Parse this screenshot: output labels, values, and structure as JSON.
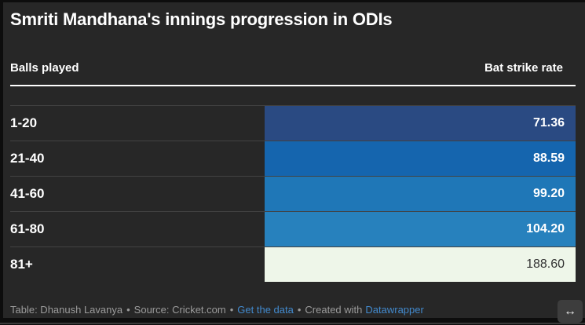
{
  "header": {
    "title": "Smriti Mandhana's innings progression in ODIs"
  },
  "table": {
    "column_left": "Balls played",
    "column_right": "Bat strike rate",
    "rows": [
      {
        "label": "1-20",
        "value": "71.36",
        "bar_color": "#2a4a82",
        "value_color": "#ffffff"
      },
      {
        "label": "21-40",
        "value": "88.59",
        "bar_color": "#1565ae",
        "value_color": "#ffffff"
      },
      {
        "label": "41-60",
        "value": "99.20",
        "bar_color": "#1f77b7",
        "value_color": "#ffffff"
      },
      {
        "label": "61-80",
        "value": "104.20",
        "bar_color": "#2781bd",
        "value_color": "#ffffff"
      },
      {
        "label": "81+",
        "value": "188.60",
        "bar_color": "#eef6e9",
        "value_color": "#333333"
      }
    ]
  },
  "footer": {
    "credit": "Table: Dhanush Lavanya",
    "separator": "•",
    "source": "Source: Cricket.com",
    "get_data_link": "Get the data",
    "created_with": "Created with",
    "datawrapper_link": "Datawrapper",
    "link_color": "#4289cc",
    "text_color": "#9b9b9b"
  },
  "icons": {
    "resize": "↔"
  },
  "colors": {
    "page_background": "#272727",
    "frame_background": "#0d0d0d",
    "header_rule": "#ffffff",
    "title_color": "#ffffff"
  },
  "chart_data": {
    "type": "bar",
    "categories": [
      "1-20",
      "21-40",
      "41-60",
      "61-80",
      "81+"
    ],
    "values": [
      71.36,
      88.59,
      99.2,
      104.2,
      188.6
    ],
    "title": "Smriti Mandhana's innings progression in ODIs",
    "xlabel": "Balls played",
    "ylabel": "Bat strike rate",
    "legend": false,
    "orientation": "horizontal",
    "bar_colors": [
      "#2a4a82",
      "#1565ae",
      "#1f77b7",
      "#2781bd",
      "#eef6e9"
    ],
    "layout": "dark-theme table; equal-width heatmap-colored bar cells with values right-aligned inside bars"
  }
}
